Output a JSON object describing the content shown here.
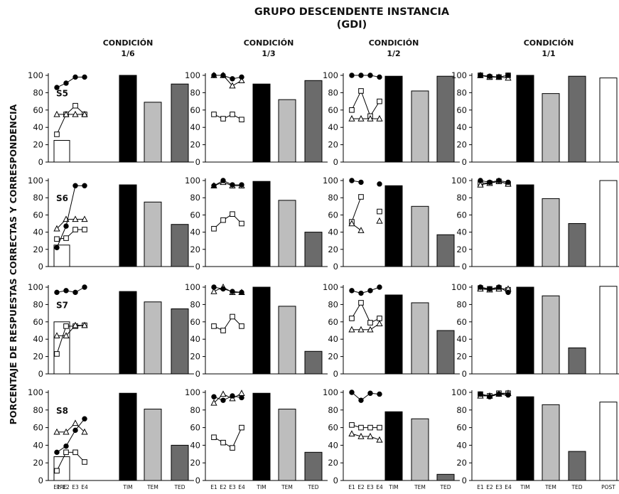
{
  "chart_data": {
    "type": "bar",
    "title": "GRUPO DESCENDENTE INSTANCIA",
    "subtitle": "(GDI)",
    "ylabel": "PORCENTAJE DE RESPUESTAS CORRECTAS Y CORRESPONDENCIA",
    "ylim": [
      0,
      100
    ],
    "yticks": [
      "0",
      "20",
      "40",
      "60",
      "80",
      "100"
    ],
    "session_ticks": [
      "E1",
      "E2",
      "E3",
      "E4"
    ],
    "bar_ticks": [
      "TIM",
      "TEM",
      "TED"
    ],
    "pre_label": "PRE",
    "post_label": "POST",
    "conditions": [
      {
        "label": "CONDICIÓN",
        "ratio": "1/6"
      },
      {
        "label": "CONDICIÓN",
        "ratio": "1/3"
      },
      {
        "label": "CONDICIÓN",
        "ratio": "1/2"
      },
      {
        "label": "CONDICIÓN",
        "ratio": "1/1"
      }
    ],
    "colors": {
      "pre": "#ffffff",
      "tim": "#000000",
      "tem": "#bdbdbd",
      "ted": "#6b6b6b",
      "post": "#ffffff"
    },
    "subjects": [
      {
        "label": "S5",
        "pre": 25,
        "post": 97,
        "conditions": [
          {
            "circle": [
              86,
              91,
              98,
              98
            ],
            "square": [
              32,
              55,
              65,
              55
            ],
            "triangle": [
              55,
              55,
              55,
              55
            ],
            "TIM": 100,
            "TEM": 69,
            "TED": 90
          },
          {
            "circle": [
              100,
              100,
              96,
              98
            ],
            "square": [
              55,
              50,
              55,
              49
            ],
            "triangle": [
              100,
              100,
              88,
              94
            ],
            "TIM": 90,
            "TEM": 72,
            "TED": 94
          },
          {
            "circle": [
              100,
              100,
              100,
              98
            ],
            "square": [
              60,
              82,
              53,
              70
            ],
            "triangle": [
              50,
              50,
              50,
              50
            ],
            "TIM": 99,
            "TEM": 82,
            "TED": 99
          },
          {
            "circle": [
              100,
              99,
              98,
              100
            ],
            "square": [
              100,
              98,
              98,
              100
            ],
            "triangle": [
              100,
              98,
              98,
              97
            ],
            "TIM": 100,
            "TEM": 79,
            "TED": 99
          }
        ]
      },
      {
        "label": "S6",
        "pre": 25,
        "post": 100,
        "conditions": [
          {
            "circle": [
              22,
              47,
              94,
              94
            ],
            "square": [
              32,
              33,
              43,
              43
            ],
            "triangle": [
              44,
              55,
              55,
              55
            ],
            "TIM": 95,
            "TEM": 75,
            "TED": 49
          },
          {
            "circle": [
              94,
              100,
              95,
              95
            ],
            "square": [
              44,
              54,
              61,
              50
            ],
            "triangle": [
              94,
              98,
              94,
              94
            ],
            "TIM": 99,
            "TEM": 77,
            "TED": 40
          },
          {
            "circle": [
              100,
              98,
              null,
              96
            ],
            "square": [
              52,
              81,
              null,
              64
            ],
            "triangle": [
              50,
              42,
              null,
              53
            ],
            "TIM": 94,
            "TEM": 70,
            "TED": 37
          },
          {
            "circle": [
              100,
              98,
              100,
              98
            ],
            "square": [
              97,
              97,
              99,
              96
            ],
            "triangle": [
              95,
              97,
              99,
              96
            ],
            "TIM": 95,
            "TEM": 79,
            "TED": 50
          }
        ]
      },
      {
        "label": "S7",
        "pre": 60,
        "post": 101,
        "conditions": [
          {
            "circle": [
              94,
              96,
              94,
              100
            ],
            "square": [
              23,
              55,
              55,
              56
            ],
            "triangle": [
              44,
              44,
              56,
              56
            ],
            "TIM": 95,
            "TEM": 83,
            "TED": 75
          },
          {
            "circle": [
              100,
              98,
              95,
              94
            ],
            "square": [
              55,
              50,
              66,
              55
            ],
            "triangle": [
              95,
              100,
              94,
              94
            ],
            "TIM": 100,
            "TEM": 78,
            "TED": 26
          },
          {
            "circle": [
              96,
              93,
              96,
              100
            ],
            "square": [
              64,
              82,
              59,
              64
            ],
            "triangle": [
              51,
              51,
              51,
              58
            ],
            "TIM": 91,
            "TEM": 82,
            "TED": 50
          },
          {
            "circle": [
              100,
              98,
              100,
              94
            ],
            "square": [
              99,
              98,
              99,
              97
            ],
            "triangle": [
              98,
              97,
              98,
              98
            ],
            "TIM": 100,
            "TEM": 90,
            "TED": 30
          }
        ]
      },
      {
        "label": "S8",
        "pre": 27,
        "post": 89,
        "conditions": [
          {
            "circle": [
              32,
              39,
              57,
              70
            ],
            "square": [
              11,
              32,
              32,
              21
            ],
            "triangle": [
              55,
              55,
              65,
              55
            ],
            "TIM": 99,
            "TEM": 81,
            "TED": 40
          },
          {
            "circle": [
              95,
              91,
              96,
              94
            ],
            "square": [
              49,
              43,
              37,
              60
            ],
            "triangle": [
              88,
              98,
              93,
              99
            ],
            "TIM": 99,
            "TEM": 81,
            "TED": 32
          },
          {
            "circle": [
              100,
              91,
              99,
              98
            ],
            "square": [
              63,
              60,
              60,
              60
            ],
            "triangle": [
              53,
              50,
              50,
              46
            ],
            "TIM": 78,
            "TEM": 70,
            "TED": 7
          },
          {
            "circle": [
              98,
              95,
              98,
              97
            ],
            "square": [
              98,
              96,
              99,
              99
            ],
            "triangle": [
              96,
              96,
              98,
              99
            ],
            "TIM": 95,
            "TEM": 86,
            "TED": 33
          }
        ]
      }
    ]
  }
}
